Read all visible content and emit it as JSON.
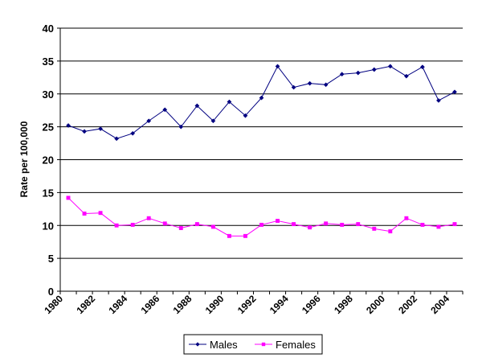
{
  "chart_data": {
    "type": "line",
    "title": "",
    "xlabel": "",
    "ylabel": "Rate per 100,000",
    "ylim": [
      0,
      40
    ],
    "yticks": [
      "0",
      "5",
      "10",
      "15",
      "20",
      "25",
      "30",
      "35",
      "40"
    ],
    "x": [
      1980,
      1981,
      1982,
      1983,
      1984,
      1985,
      1986,
      1987,
      1988,
      1989,
      1990,
      1991,
      1992,
      1993,
      1994,
      1995,
      1996,
      1997,
      1998,
      1999,
      2000,
      2001,
      2002,
      2003,
      2004
    ],
    "xticks": [
      "1980",
      "1982",
      "1984",
      "1986",
      "1988",
      "1990",
      "1992",
      "1994",
      "1996",
      "1998",
      "2000",
      "2002",
      "2004"
    ],
    "grid": true,
    "legend_position": "bottom",
    "series": [
      {
        "name": "Males",
        "color": "#000080",
        "marker": "diamond",
        "values": [
          25.2,
          24.3,
          24.7,
          23.2,
          24.0,
          25.9,
          27.6,
          25.0,
          28.2,
          25.9,
          28.8,
          26.7,
          29.4,
          34.2,
          31.0,
          31.6,
          31.4,
          33.0,
          33.2,
          33.7,
          34.2,
          32.7,
          34.1,
          29.0,
          30.3
        ]
      },
      {
        "name": "Females",
        "color": "#ff00ff",
        "marker": "square",
        "values": [
          14.2,
          11.8,
          11.9,
          10.0,
          10.1,
          11.1,
          10.3,
          9.6,
          10.2,
          9.8,
          8.4,
          8.4,
          10.1,
          10.7,
          10.2,
          9.7,
          10.3,
          10.1,
          10.2,
          9.5,
          9.1,
          11.1,
          10.1,
          9.8,
          10.2
        ]
      }
    ]
  }
}
